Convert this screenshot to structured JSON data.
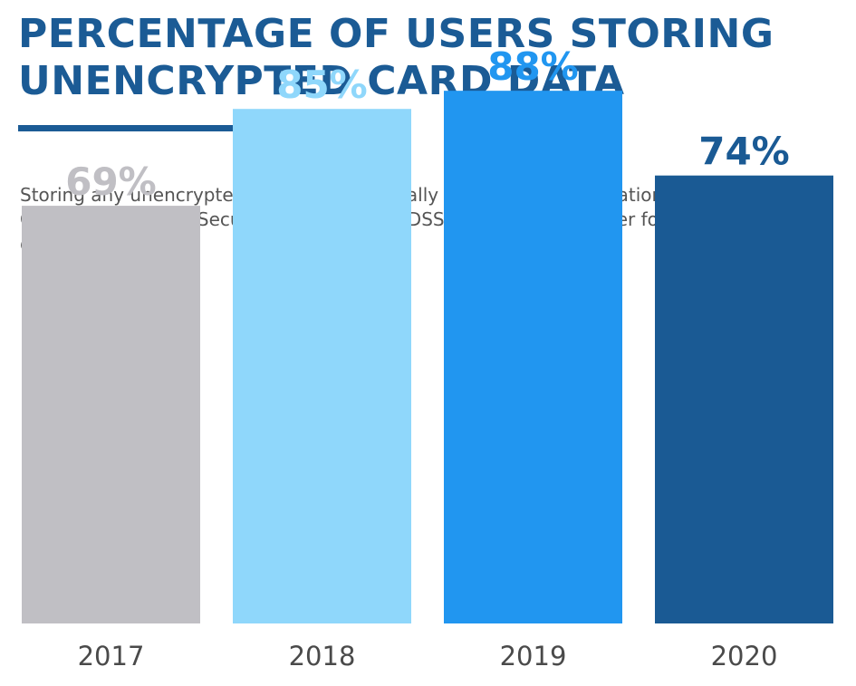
{
  "title_lines": [
    "PERCENTAGE OF USERS STORING",
    "UNENCRYPTED CARD DATA"
  ],
  "subtitle": "Storing any unencrypted card data, especially track data, is a violation of the Payment Card Industry Data Security Standard (PCI DSS) and makes it easier for a criminal to steal data.",
  "colors": {
    "title": "#1b5b95",
    "axis": "#4a4a4a",
    "bars": [
      "#c0bfc4",
      "#8fd7fb",
      "#2196f0",
      "#1a5a94"
    ]
  },
  "chart_data": {
    "type": "bar",
    "title": "PERCENTAGE OF USERS STORING UNENCRYPTED CARD DATA",
    "xlabel": "",
    "ylabel": "",
    "categories": [
      "2017",
      "2018",
      "2019",
      "2020"
    ],
    "values": [
      69,
      85,
      88,
      74
    ],
    "value_labels": [
      "69%",
      "85%",
      "88%",
      "74%"
    ],
    "unit": "%",
    "ylim": [
      0,
      100
    ],
    "grid": false,
    "legend": "none"
  }
}
